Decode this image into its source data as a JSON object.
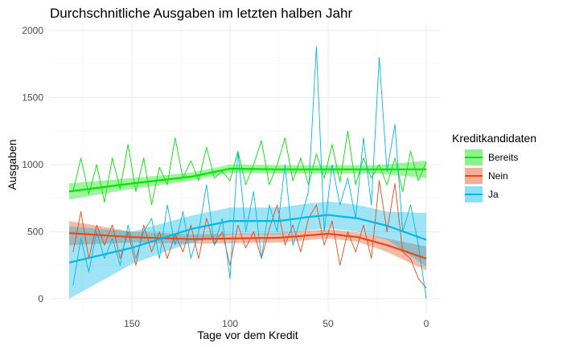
{
  "chart_data": {
    "type": "line",
    "title": "Durchschnitliche Ausgaben im letzten halben Jahr",
    "xlabel": "Tage vor dem Kredit",
    "ylabel": "Ausgaben",
    "x_reversed": true,
    "xlim": [
      182,
      0
    ],
    "ylim": [
      0,
      2000
    ],
    "xticks": [
      150,
      100,
      50,
      0
    ],
    "yticks": [
      0,
      500,
      1000,
      1500,
      2000
    ],
    "grid": true,
    "legend": {
      "title": "Kreditkandidaten",
      "position": "right"
    },
    "series": [
      {
        "name": "Bereits",
        "color": "#00E400",
        "raw": [
          [
            180,
            800
          ],
          [
            176,
            1050
          ],
          [
            172,
            780
          ],
          [
            168,
            1000
          ],
          [
            164,
            720
          ],
          [
            160,
            1050
          ],
          [
            156,
            820
          ],
          [
            152,
            1150
          ],
          [
            148,
            800
          ],
          [
            144,
            1050
          ],
          [
            140,
            700
          ],
          [
            136,
            980
          ],
          [
            132,
            850
          ],
          [
            128,
            1200
          ],
          [
            124,
            900
          ],
          [
            120,
            1030
          ],
          [
            116,
            880
          ],
          [
            112,
            1130
          ],
          [
            108,
            900
          ],
          [
            104,
            950
          ],
          [
            100,
            880
          ],
          [
            96,
            1100
          ],
          [
            92,
            850
          ],
          [
            88,
            1000
          ],
          [
            84,
            1180
          ],
          [
            80,
            850
          ],
          [
            76,
            1000
          ],
          [
            72,
            1200
          ],
          [
            68,
            880
          ],
          [
            64,
            1050
          ],
          [
            60,
            850
          ],
          [
            56,
            1080
          ],
          [
            52,
            900
          ],
          [
            48,
            1150
          ],
          [
            44,
            870
          ],
          [
            40,
            1250
          ],
          [
            36,
            850
          ],
          [
            32,
            1050
          ],
          [
            28,
            900
          ],
          [
            24,
            1000
          ],
          [
            20,
            850
          ],
          [
            16,
            1050
          ],
          [
            12,
            800
          ],
          [
            8,
            1100
          ],
          [
            4,
            880
          ],
          [
            0,
            1020
          ]
        ],
        "trend": [
          [
            182,
            800
          ],
          [
            150,
            860
          ],
          [
            120,
            910
          ],
          [
            100,
            970
          ],
          [
            75,
            965
          ],
          [
            50,
            965
          ],
          [
            25,
            965
          ],
          [
            0,
            965
          ]
        ],
        "band": [
          [
            182,
            740,
            860
          ],
          [
            150,
            820,
            900
          ],
          [
            120,
            880,
            940
          ],
          [
            100,
            940,
            1000
          ],
          [
            75,
            935,
            995
          ],
          [
            50,
            935,
            995
          ],
          [
            25,
            935,
            995
          ],
          [
            0,
            900,
            1030
          ]
        ]
      },
      {
        "name": "Nein",
        "color": "#E64A19",
        "raw": [
          [
            180,
            350
          ],
          [
            176,
            650
          ],
          [
            172,
            300
          ],
          [
            168,
            550
          ],
          [
            164,
            400
          ],
          [
            160,
            550
          ],
          [
            156,
            300
          ],
          [
            152,
            500
          ],
          [
            148,
            250
          ],
          [
            144,
            550
          ],
          [
            140,
            350
          ],
          [
            136,
            500
          ],
          [
            132,
            300
          ],
          [
            128,
            480
          ],
          [
            124,
            350
          ],
          [
            120,
            550
          ],
          [
            116,
            300
          ],
          [
            112,
            600
          ],
          [
            108,
            400
          ],
          [
            104,
            500
          ],
          [
            100,
            250
          ],
          [
            96,
            550
          ],
          [
            92,
            380
          ],
          [
            88,
            500
          ],
          [
            84,
            300
          ],
          [
            80,
            520
          ],
          [
            76,
            700
          ],
          [
            72,
            400
          ],
          [
            68,
            550
          ],
          [
            64,
            350
          ],
          [
            60,
            600
          ],
          [
            56,
            700
          ],
          [
            52,
            400
          ],
          [
            48,
            580
          ],
          [
            44,
            250
          ],
          [
            40,
            500
          ],
          [
            36,
            350
          ],
          [
            32,
            550
          ],
          [
            28,
            300
          ],
          [
            24,
            880
          ],
          [
            20,
            500
          ],
          [
            16,
            860
          ],
          [
            12,
            350
          ],
          [
            8,
            300
          ],
          [
            4,
            150
          ],
          [
            0,
            80
          ]
        ],
        "trend": [
          [
            182,
            490
          ],
          [
            150,
            460
          ],
          [
            120,
            445
          ],
          [
            100,
            450
          ],
          [
            75,
            455
          ],
          [
            50,
            485
          ],
          [
            35,
            460
          ],
          [
            20,
            400
          ],
          [
            0,
            300
          ]
        ],
        "band": [
          [
            182,
            400,
            580
          ],
          [
            150,
            420,
            500
          ],
          [
            120,
            410,
            480
          ],
          [
            100,
            415,
            485
          ],
          [
            75,
            420,
            490
          ],
          [
            50,
            450,
            520
          ],
          [
            35,
            425,
            495
          ],
          [
            20,
            350,
            450
          ],
          [
            0,
            210,
            390
          ]
        ]
      },
      {
        "name": "Ja",
        "color": "#00B8E7",
        "raw": [
          [
            180,
            100
          ],
          [
            176,
            450
          ],
          [
            172,
            200
          ],
          [
            168,
            500
          ],
          [
            164,
            300
          ],
          [
            160,
            450
          ],
          [
            156,
            250
          ],
          [
            152,
            550
          ],
          [
            148,
            300
          ],
          [
            144,
            500
          ],
          [
            140,
            600
          ],
          [
            136,
            300
          ],
          [
            132,
            700
          ],
          [
            128,
            400
          ],
          [
            124,
            650
          ],
          [
            120,
            300
          ],
          [
            116,
            500
          ],
          [
            112,
            850
          ],
          [
            108,
            400
          ],
          [
            104,
            600
          ],
          [
            100,
            150
          ],
          [
            96,
            1100
          ],
          [
            92,
            500
          ],
          [
            88,
            800
          ],
          [
            84,
            300
          ],
          [
            80,
            700
          ],
          [
            76,
            500
          ],
          [
            72,
            1000
          ],
          [
            68,
            400
          ],
          [
            64,
            600
          ],
          [
            60,
            800
          ],
          [
            56,
            1880
          ],
          [
            52,
            500
          ],
          [
            48,
            1000
          ],
          [
            44,
            700
          ],
          [
            40,
            900
          ],
          [
            36,
            600
          ],
          [
            32,
            1200
          ],
          [
            28,
            700
          ],
          [
            24,
            1800
          ],
          [
            20,
            950
          ],
          [
            16,
            1300
          ],
          [
            12,
            500
          ],
          [
            8,
            700
          ],
          [
            4,
            400
          ],
          [
            0,
            0
          ]
        ],
        "trend": [
          [
            182,
            270
          ],
          [
            150,
            380
          ],
          [
            120,
            520
          ],
          [
            100,
            580
          ],
          [
            75,
            580
          ],
          [
            60,
            610
          ],
          [
            50,
            625
          ],
          [
            35,
            600
          ],
          [
            20,
            545
          ],
          [
            0,
            440
          ]
        ],
        "band": [
          [
            182,
            0,
            540
          ],
          [
            150,
            260,
            500
          ],
          [
            120,
            420,
            620
          ],
          [
            100,
            480,
            680
          ],
          [
            75,
            480,
            680
          ],
          [
            60,
            510,
            710
          ],
          [
            50,
            525,
            725
          ],
          [
            35,
            500,
            700
          ],
          [
            20,
            440,
            650
          ],
          [
            0,
            240,
            640
          ]
        ]
      }
    ]
  }
}
